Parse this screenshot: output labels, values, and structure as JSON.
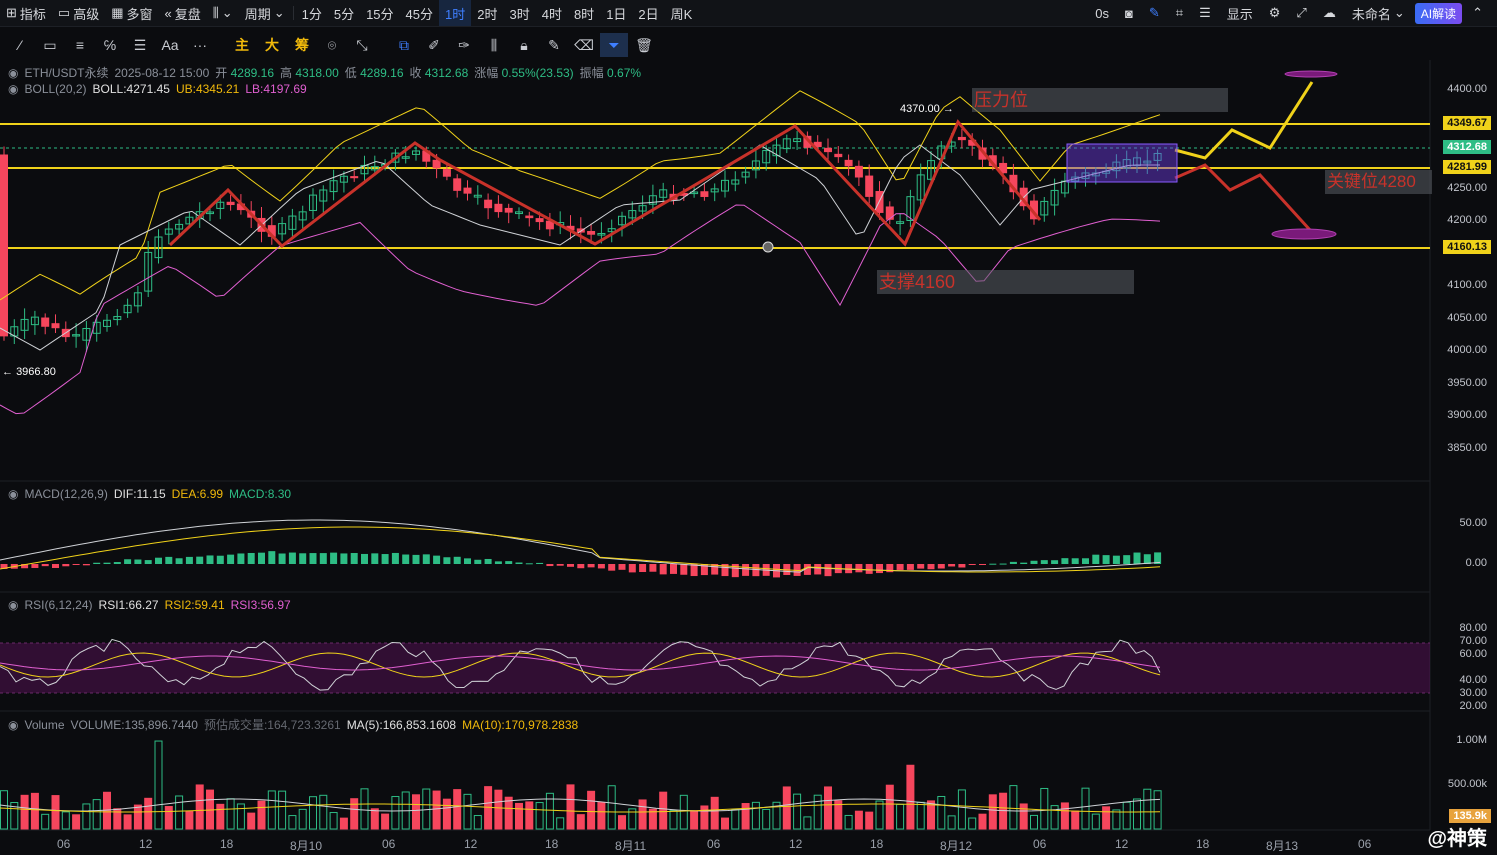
{
  "topbar": {
    "items": [
      "指标",
      "高级",
      "多窗",
      "复盘",
      "",
      "周期"
    ],
    "intervals": [
      "1分",
      "5分",
      "15分",
      "45分",
      "1时",
      "2时",
      "3时",
      "4时",
      "8时",
      "1日",
      "2日",
      "周K"
    ],
    "active_interval": "1时",
    "countdown": "0s",
    "display": "显示",
    "user": "未命名",
    "ai": "AI解读"
  },
  "toolbar": {
    "main": "主",
    "big": "大",
    "chip": "筹"
  },
  "legend": {
    "symbol": "ETH/USDT永续",
    "datetime": "2025-08-12 15:00",
    "open_label": "开",
    "open": "4289.16",
    "high_label": "高",
    "high": "4318.00",
    "low_label": "低",
    "low": "4289.16",
    "close_label": "收",
    "close": "4312.68",
    "change_label": "涨幅",
    "change": "0.55%(23.53)",
    "amp_label": "振幅",
    "amp": "0.67%",
    "boll_name": "BOLL(20,2)",
    "boll": "BOLL:4271.45",
    "ub": "UB:4345.21",
    "lb": "LB:4197.69",
    "macd_name": "MACD(12,26,9)",
    "dif": "DIF:11.15",
    "dea": "DEA:6.99",
    "macd": "MACD:8.30",
    "rsi_name": "RSI(6,12,24)",
    "rsi1": "RSI1:66.27",
    "rsi2": "RSI2:59.41",
    "rsi3": "RSI3:56.97",
    "vol_name": "Volume",
    "volume": "VOLUME:135,896.7440",
    "est_label": "预估成交量:164,723.3261",
    "ma5": "MA(5):166,853.1608",
    "ma10": "MA(10):170,978.2838"
  },
  "price_scale": [
    "4400.00",
    "4250.00",
    "4200.00",
    "4100.00",
    "4050.00",
    "4000.00",
    "3950.00",
    "3900.00",
    "3850.00"
  ],
  "price_tags": {
    "t1": "4349.67",
    "t2": "4312.68",
    "t3": "4281.99",
    "t4": "4160.13"
  },
  "macd_scale": [
    "50.00",
    "0.00"
  ],
  "rsi_scale": [
    "80.00",
    "70.00",
    "60.00",
    "40.00",
    "30.00",
    "20.00"
  ],
  "vol_scale": [
    "1.00M",
    "500.00k",
    "135.9k"
  ],
  "x_labels": [
    "06",
    "12",
    "18",
    "8月10",
    "06",
    "12",
    "18",
    "8月11",
    "06",
    "12",
    "18",
    "8月12",
    "06",
    "12",
    "18",
    "8月13",
    "06"
  ],
  "annotations": {
    "resistance": "压力位",
    "support": "支撑4160",
    "key": "关键位4280",
    "high_mark": "4370.00",
    "low_mark": "3966.80"
  },
  "watermark": "@神策",
  "colors": {
    "up": "#2ebd85",
    "down": "#f6465d",
    "accent": "#3f7fff",
    "yellow": "#f0d21a",
    "drawing": "#c8322a"
  }
}
